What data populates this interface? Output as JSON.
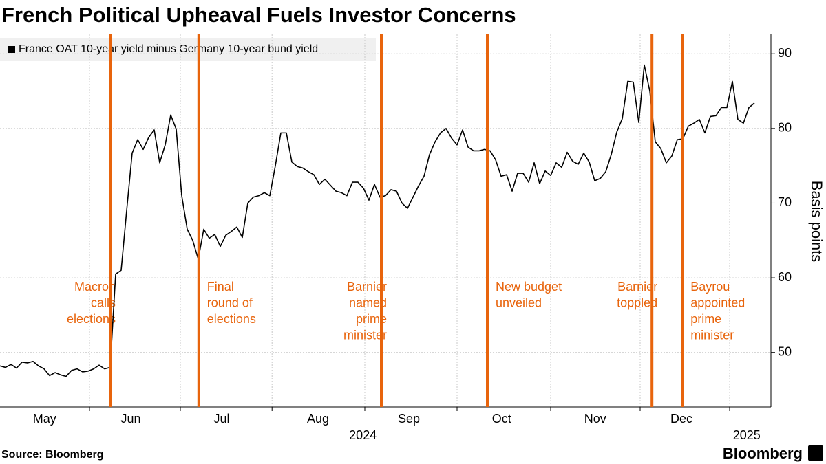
{
  "chart_data": {
    "type": "line",
    "title": "French Political Upheaval Fuels Investor Concerns",
    "source": "Source: Bloomberg",
    "brand": "Bloomberg",
    "y_axis_label": "Basis points",
    "series": [
      {
        "name": "France OAT 10-year yield minus Germany 10-year bund yield",
        "color": "#000000",
        "values": [
          48.2,
          48.0,
          48.4,
          47.9,
          48.7,
          48.6,
          48.8,
          48.2,
          47.8,
          46.9,
          47.3,
          47.0,
          46.8,
          47.6,
          47.8,
          47.4,
          47.5,
          47.8,
          48.3,
          47.8,
          48.0,
          60.5,
          61.0,
          69.0,
          76.7,
          78.5,
          77.2,
          78.8,
          79.8,
          75.4,
          77.8,
          81.8,
          79.9,
          71.0,
          66.5,
          65.0,
          62.5,
          66.5,
          65.3,
          65.8,
          64.2,
          65.7,
          66.2,
          66.8,
          65.4,
          70.0,
          70.8,
          71.0,
          71.4,
          71.0,
          75.0,
          79.4,
          79.4,
          75.5,
          74.9,
          74.7,
          74.2,
          73.8,
          72.5,
          73.2,
          72.4,
          71.6,
          71.4,
          71.0,
          72.8,
          72.8,
          72.0,
          70.4,
          72.5,
          70.8,
          71.0,
          71.8,
          71.6,
          70.0,
          69.3,
          70.8,
          72.3,
          73.6,
          76.5,
          78.2,
          79.4,
          80.0,
          78.7,
          77.8,
          79.8,
          77.5,
          77.0,
          77.0,
          77.2,
          77.0,
          75.8,
          73.6,
          73.8,
          71.6,
          74.0,
          74.0,
          72.8,
          75.4,
          72.6,
          74.3,
          73.7,
          75.4,
          74.8,
          76.8,
          75.6,
          75.2,
          76.7,
          75.5,
          73.0,
          73.3,
          74.2,
          76.5,
          79.5,
          81.3,
          86.3,
          86.2,
          80.8,
          88.5,
          85.0,
          78.2,
          77.3,
          75.4,
          76.3,
          78.5,
          78.6,
          80.3,
          80.7,
          81.2,
          79.4,
          81.6,
          81.7,
          82.8,
          82.8,
          86.3,
          81.2,
          80.7,
          82.8,
          83.4
        ]
      }
    ],
    "xlim": [
      0,
      140
    ],
    "xticks": [
      {
        "value": 8.1,
        "label": "May"
      },
      {
        "value": 23.75,
        "label": "Jun"
      },
      {
        "value": 40.25,
        "label": "Jul"
      },
      {
        "value": 57.75,
        "label": "Aug"
      },
      {
        "value": 74.25,
        "label": "Sep"
      },
      {
        "value": 91.1,
        "label": "Oct"
      },
      {
        "value": 108.1,
        "label": "Nov"
      },
      {
        "value": 123.75,
        "label": "Dec"
      }
    ],
    "year_labels": [
      {
        "value": 65.9,
        "label": "2024"
      },
      {
        "value": 135.6,
        "label": "2025"
      }
    ],
    "x_grid": [
      16.25,
      32.75,
      49.4,
      66.25,
      83,
      100,
      116.25,
      132.5
    ],
    "ylim": [
      42.7,
      92.6
    ],
    "yticks": [
      50,
      60,
      70,
      80,
      90
    ],
    "grid": true,
    "events": [
      {
        "x": 20,
        "side": "left",
        "label": [
          "Macron",
          "calls",
          "elections"
        ],
        "color": "#e8640c"
      },
      {
        "x": 36.1,
        "side": "right",
        "label": [
          "Final",
          "round of",
          "elections"
        ],
        "color": "#e8640c"
      },
      {
        "x": 69.25,
        "side": "left",
        "label": [
          "Barnier",
          "named",
          "prime",
          "minister"
        ],
        "color": "#e8640c"
      },
      {
        "x": 88.5,
        "side": "right",
        "label": [
          "New budget",
          "unveiled"
        ],
        "color": "#e8640c"
      },
      {
        "x": 118.4,
        "side": "left",
        "label": [
          "Barnier",
          "toppled"
        ],
        "color": "#e8640c"
      },
      {
        "x": 123.9,
        "side": "right",
        "label": [
          "Bayrou",
          "appointed",
          "prime",
          "minister"
        ],
        "color": "#e8640c"
      }
    ]
  }
}
